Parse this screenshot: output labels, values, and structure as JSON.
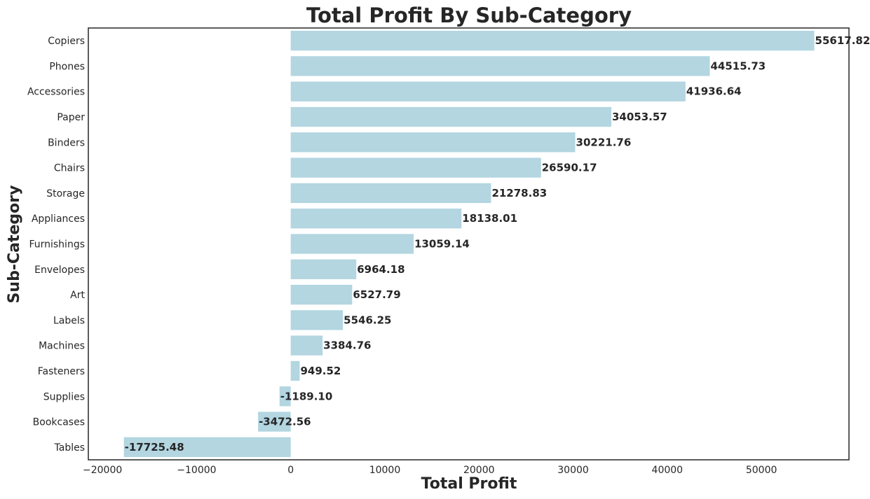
{
  "chart_data": {
    "type": "bar",
    "orientation": "horizontal",
    "title": "Total Profit By Sub-Category",
    "xlabel": "Total Profit",
    "ylabel": "Sub-Category",
    "xlim": [
      -21500,
      59300
    ],
    "xticks": [
      -20000,
      -10000,
      0,
      10000,
      20000,
      30000,
      40000,
      50000
    ],
    "xtick_labels": [
      "−20000",
      "−10000",
      "0",
      "10000",
      "20000",
      "30000",
      "40000",
      "50000"
    ],
    "grid": false,
    "categories": [
      "Copiers",
      "Phones",
      "Accessories",
      "Paper",
      "Binders",
      "Chairs",
      "Storage",
      "Appliances",
      "Furnishings",
      "Envelopes",
      "Art",
      "Labels",
      "Machines",
      "Fasteners",
      "Supplies",
      "Bookcases",
      "Tables"
    ],
    "values": [
      55617.82,
      44515.73,
      41936.64,
      34053.57,
      30221.76,
      26590.17,
      21278.83,
      18138.01,
      13059.14,
      6964.18,
      6527.79,
      5546.25,
      3384.76,
      949.52,
      -1189.1,
      -3472.56,
      -17725.48
    ],
    "value_labels": [
      "55617.82",
      "44515.73",
      "41936.64",
      "34053.57",
      "30221.76",
      "26590.17",
      "21278.83",
      "18138.01",
      "13059.14",
      "6964.18",
      "6527.79",
      "5546.25",
      "3384.76",
      "949.52",
      "-1189.10",
      "-3472.56",
      "-17725.48"
    ],
    "bar_color": "#b3d6e1",
    "frame_color": "#262626"
  }
}
